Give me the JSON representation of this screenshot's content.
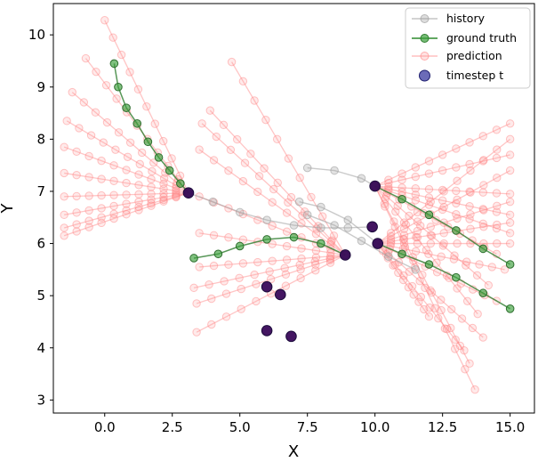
{
  "chart_data": {
    "type": "scatter",
    "title": "",
    "xlabel": "X",
    "ylabel": "Y",
    "xlim": [
      -1.9,
      15.9
    ],
    "ylim": [
      2.75,
      10.6
    ],
    "xticks": [
      0.0,
      2.5,
      5.0,
      7.5,
      10.0,
      12.5,
      15.0
    ],
    "xtick_labels": [
      "0.0",
      "2.5",
      "5.0",
      "7.5",
      "10.0",
      "12.5",
      "15.0"
    ],
    "yticks": [
      3,
      4,
      5,
      6,
      7,
      8,
      9,
      10
    ],
    "ytick_labels": [
      "3",
      "4",
      "5",
      "6",
      "7",
      "8",
      "9",
      "10"
    ],
    "grid": false,
    "legend_position": "top-right",
    "legend": [
      {
        "label": "history",
        "color": "#9e9e9e",
        "style": "line-marker"
      },
      {
        "label": "ground truth",
        "color": "#2e8b2e",
        "style": "line-marker"
      },
      {
        "label": "prediction",
        "color": "#ff7f7f",
        "style": "line-marker"
      },
      {
        "label": "timestep t",
        "color": "#1f1f8f",
        "style": "marker"
      }
    ],
    "timestep_points": [
      {
        "x": 3.1,
        "y": 6.97
      },
      {
        "x": 10.0,
        "y": 7.1
      },
      {
        "x": 9.9,
        "y": 6.32
      },
      {
        "x": 10.1,
        "y": 6.0
      },
      {
        "x": 8.9,
        "y": 5.78
      },
      {
        "x": 6.0,
        "y": 5.17
      },
      {
        "x": 6.5,
        "y": 5.02
      },
      {
        "x": 6.0,
        "y": 4.33
      },
      {
        "x": 6.9,
        "y": 4.22
      }
    ],
    "history": [
      {
        "x": [
          7.5,
          8.5,
          9.5,
          10.0
        ],
        "y": [
          7.45,
          7.4,
          7.25,
          7.1
        ]
      },
      {
        "x": [
          3.1,
          4.0,
          5.0,
          6.0,
          7.0,
          8.0,
          9.0,
          9.9
        ],
        "y": [
          6.97,
          6.8,
          6.6,
          6.45,
          6.35,
          6.3,
          6.3,
          6.32
        ]
      },
      {
        "x": [
          7.2,
          8.0,
          9.0,
          10.1
        ],
        "y": [
          6.8,
          6.7,
          6.45,
          6.0
        ]
      },
      {
        "x": [
          7.5,
          8.5,
          9.5,
          10.5,
          11.5
        ],
        "y": [
          6.55,
          6.35,
          6.05,
          5.75,
          5.5
        ]
      }
    ],
    "ground_truth": [
      {
        "x": [
          0.35,
          0.5,
          0.8,
          1.2,
          1.6,
          2.0,
          2.4,
          2.8,
          3.1
        ],
        "y": [
          9.45,
          9.0,
          8.6,
          8.3,
          7.95,
          7.65,
          7.4,
          7.15,
          6.97
        ]
      },
      {
        "x": [
          3.3,
          4.2,
          5.0,
          6.0,
          7.0,
          8.0,
          8.9
        ],
        "y": [
          5.72,
          5.8,
          5.95,
          6.08,
          6.12,
          6.0,
          5.78
        ]
      },
      {
        "x": [
          10.0,
          11.0,
          12.0,
          13.0,
          14.0,
          15.0
        ],
        "y": [
          7.1,
          6.85,
          6.55,
          6.25,
          5.9,
          5.6
        ]
      },
      {
        "x": [
          10.1,
          11.0,
          12.0,
          13.0,
          14.0,
          15.0
        ],
        "y": [
          6.0,
          5.8,
          5.6,
          5.35,
          5.05,
          4.75
        ]
      }
    ],
    "prediction_fans": [
      {
        "origin": [
          3.1,
          6.97
        ],
        "ends": [
          [
            0.0,
            10.28
          ],
          [
            -0.7,
            9.55
          ],
          [
            -1.2,
            8.9
          ],
          [
            -1.4,
            8.35
          ],
          [
            -1.5,
            7.85
          ],
          [
            -1.5,
            7.35
          ],
          [
            -1.5,
            6.9
          ],
          [
            -1.5,
            6.55
          ],
          [
            -1.5,
            6.3
          ],
          [
            -1.5,
            6.15
          ]
        ]
      },
      {
        "origin": [
          8.9,
          5.78
        ],
        "ends": [
          [
            4.7,
            9.48
          ],
          [
            3.9,
            8.55
          ],
          [
            3.6,
            8.3
          ],
          [
            3.5,
            7.8
          ],
          [
            3.5,
            6.9
          ],
          [
            3.5,
            6.2
          ],
          [
            3.5,
            5.55
          ],
          [
            3.3,
            5.15
          ],
          [
            3.4,
            4.85
          ],
          [
            3.4,
            4.3
          ]
        ]
      },
      {
        "origin": [
          10.0,
          7.1
        ],
        "ends": [
          [
            15.0,
            8.3
          ],
          [
            15.0,
            7.7
          ],
          [
            15.0,
            6.95
          ],
          [
            15.0,
            6.55
          ],
          [
            15.0,
            6.2
          ],
          [
            14.5,
            5.8
          ],
          [
            14.2,
            5.2
          ],
          [
            13.8,
            4.65
          ],
          [
            13.5,
            3.7
          ],
          [
            13.7,
            3.2
          ]
        ]
      },
      {
        "origin": [
          10.1,
          6.0
        ],
        "ends": [
          [
            15.0,
            8.0
          ],
          [
            15.0,
            7.4
          ],
          [
            15.0,
            6.8
          ],
          [
            15.0,
            6.4
          ],
          [
            15.0,
            6.0
          ],
          [
            14.8,
            5.5
          ],
          [
            14.5,
            4.9
          ],
          [
            14.0,
            4.2
          ],
          [
            13.3,
            3.95
          ],
          [
            12.0,
            4.6
          ]
        ]
      }
    ]
  }
}
